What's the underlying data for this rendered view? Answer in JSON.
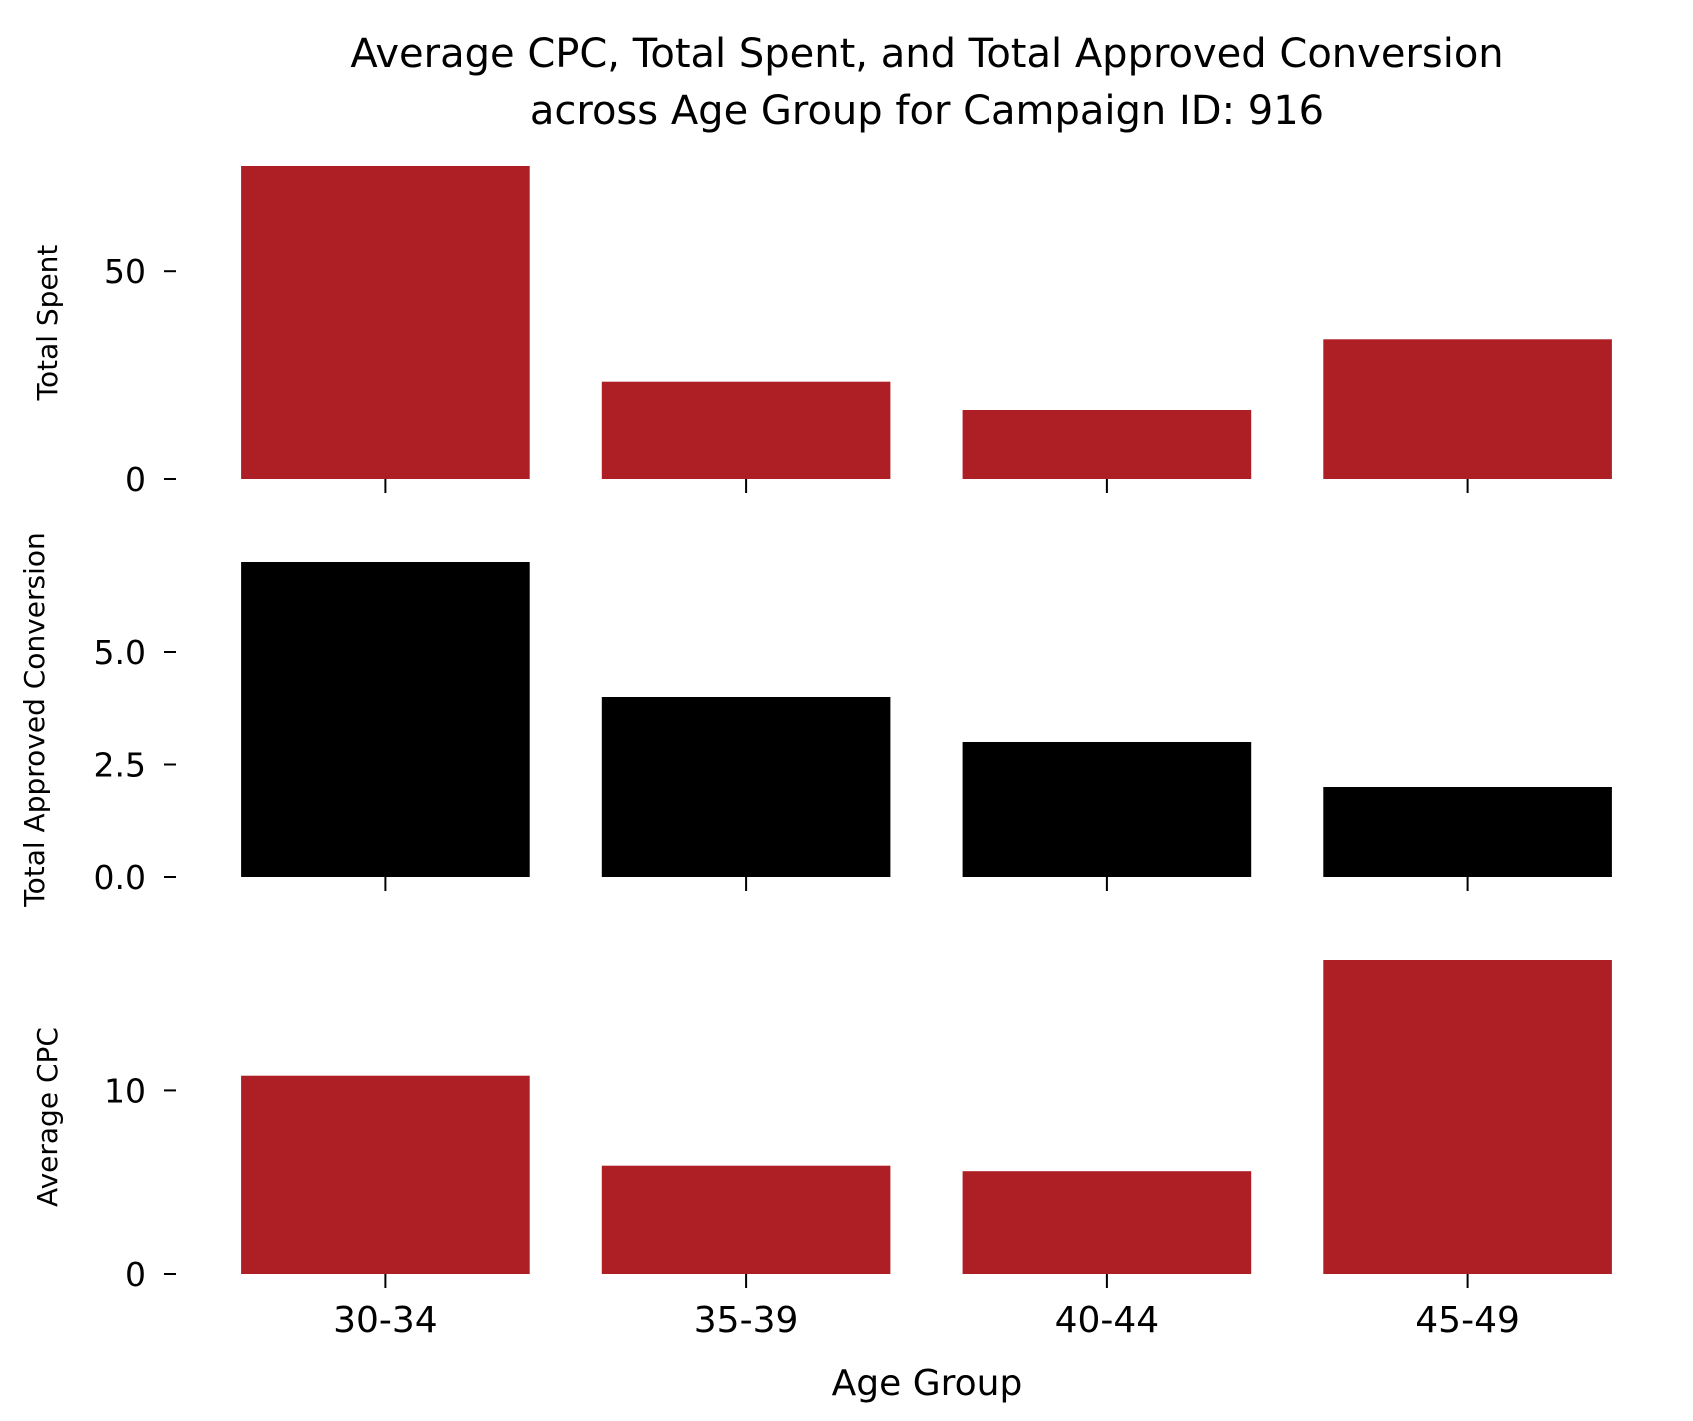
{
  "chart_data": {
    "type": "bar",
    "title_lines": [
      "Average CPC, Total Spent, and Total Approved Conversion",
      "across Age Group for Campaign ID: 916"
    ],
    "xlabel": "Age Group",
    "categories": [
      "30-34",
      "35-39",
      "40-44",
      "45-49"
    ],
    "panels": [
      {
        "ylabel": "Total Spent",
        "values": [
          75.3,
          23.4,
          16.6,
          33.6
        ],
        "ylim": [
          0,
          75.3
        ],
        "yticks": [
          0,
          50
        ],
        "ytick_labels": [
          "0",
          "50"
        ],
        "color": "#ad1f25"
      },
      {
        "ylabel": "Total Approved Conversion",
        "values": [
          7.0,
          4.0,
          3.0,
          2.0
        ],
        "ylim": [
          0,
          7.0
        ],
        "yticks": [
          0,
          2.5,
          5
        ],
        "ytick_labels": [
          "0.0",
          "2.5",
          "5.0"
        ],
        "color": "#000000"
      },
      {
        "ylabel": "Average CPC",
        "values": [
          10.8,
          5.9,
          5.6,
          17.1
        ],
        "ylim": [
          0,
          17.1
        ],
        "yticks": [
          0,
          10
        ],
        "ytick_labels": [
          "0",
          "10"
        ],
        "color": "#ad1f25"
      }
    ]
  }
}
